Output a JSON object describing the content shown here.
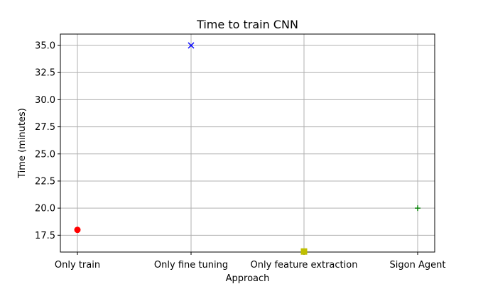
{
  "chart_data": {
    "type": "scatter",
    "title": "Time to train CNN",
    "xlabel": "Approach",
    "ylabel": "Time (minutes)",
    "categories": [
      "Only train",
      "Only fine tuning",
      "Only feature extraction",
      "Sigon Agent"
    ],
    "points": [
      {
        "category": "Only train",
        "value": 18.0,
        "marker": "circle",
        "color": "#ff0000"
      },
      {
        "category": "Only fine tuning",
        "value": 35.0,
        "marker": "x",
        "color": "#0000ff"
      },
      {
        "category": "Only feature extraction",
        "value": 16.0,
        "marker": "square",
        "color": "#bfbf00"
      },
      {
        "category": "Sigon Agent",
        "value": 20.0,
        "marker": "plus",
        "color": "#008000"
      }
    ],
    "ylim": [
      15.95,
      36.05
    ],
    "yticks": [
      17.5,
      20.0,
      22.5,
      25.0,
      27.5,
      30.0,
      32.5,
      35.0
    ],
    "ytick_labels": [
      "17.5",
      "20.0",
      "22.5",
      "25.0",
      "27.5",
      "30.0",
      "32.5",
      "35.0"
    ],
    "grid": true,
    "legend": "none"
  }
}
